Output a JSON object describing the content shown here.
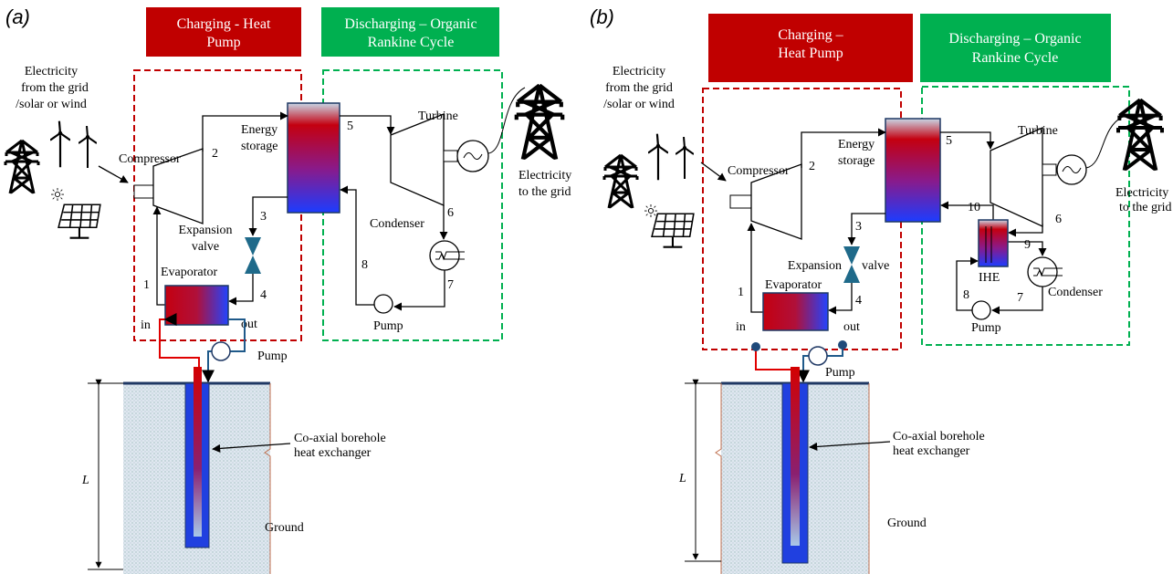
{
  "panel_a": {
    "label": "(a)",
    "charging_title": [
      "Charging - Heat",
      "Pump"
    ],
    "discharging_title": [
      "Discharging – Organic",
      "Rankine Cycle"
    ],
    "source": [
      "Electricity",
      "from the grid",
      "/solar or wind"
    ],
    "compressor": "Compressor",
    "energy_storage": [
      "Energy",
      "storage"
    ],
    "turbine": "Turbine",
    "electricity_out": [
      "Electricity",
      "to the grid"
    ],
    "expansion_valve": [
      "Expansion",
      "valve"
    ],
    "condenser": "Condenser",
    "evaporator": "Evaporator",
    "evaporator_in": "in",
    "evaporator_out": "out",
    "orc_pump": "Pump",
    "ground_pump": "Pump",
    "borehole": [
      "Co-axial borehole",
      "heat exchanger"
    ],
    "ground": "Ground",
    "depth": "L",
    "states": [
      "1",
      "2",
      "3",
      "4",
      "5",
      "6",
      "7",
      "8"
    ]
  },
  "panel_b": {
    "label": "(b)",
    "charging_title": [
      "Charging –",
      "Heat Pump"
    ],
    "discharging_title": [
      "Discharging – Organic",
      "Rankine Cycle"
    ],
    "source": [
      "Electricity",
      "from the grid",
      "/solar or wind"
    ],
    "compressor": "Compressor",
    "energy_storage": [
      "Energy",
      "storage"
    ],
    "turbine": "Turbine",
    "electricity_out": [
      "Electricity",
      "to the grid"
    ],
    "expansion_valve": [
      "Expansion",
      "valve"
    ],
    "condenser": "Condenser",
    "ihe": "IHE",
    "evaporator": "Evaporator",
    "evaporator_in": "in",
    "evaporator_out": "out",
    "orc_pump": "Pump",
    "ground_pump": "Pump",
    "borehole": [
      "Co-axial borehole",
      "heat exchanger"
    ],
    "ground": "Ground",
    "depth": "L",
    "states": [
      "1",
      "2",
      "3",
      "4",
      "5",
      "6",
      "7",
      "8",
      "9",
      "10"
    ]
  }
}
